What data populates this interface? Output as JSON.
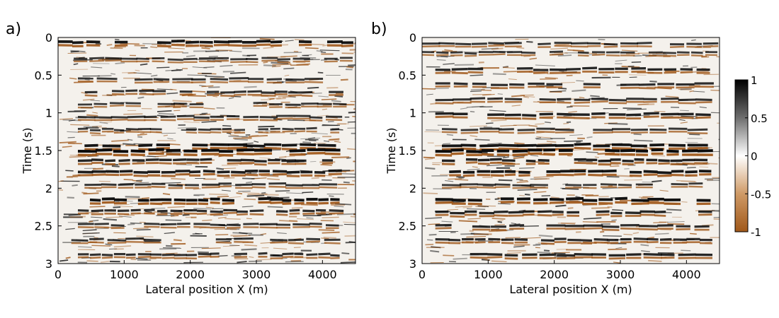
{
  "chart_data": [
    {
      "panel_label": "a)",
      "type": "heatmap",
      "title": "",
      "xlabel": "Lateral position X (m)",
      "ylabel": "Time (s)",
      "xlim": [
        0,
        4500
      ],
      "ylim": [
        0,
        3
      ],
      "y_inverted": true,
      "x_ticks": [
        0,
        1000,
        2000,
        3000,
        4000
      ],
      "x_tick_labels": [
        "0",
        "1000",
        "2000",
        "3000",
        "4000"
      ],
      "y_ticks": [
        0,
        0.5,
        1,
        1.5,
        2,
        2.5,
        3
      ],
      "y_tick_labels": [
        "0",
        "0.5",
        "1",
        "1.5",
        "2",
        "2.5",
        "3"
      ],
      "colormap": "brown-white-black",
      "color_range": [
        -1,
        1
      ],
      "reflectors": [
        {
          "t": 0.06,
          "x_from": 0,
          "x_to": 4500,
          "strength": 0.9
        },
        {
          "t": 0.28,
          "x_from": 0,
          "x_to": 4500,
          "strength": 0.55
        },
        {
          "t": 0.55,
          "x_from": 300,
          "x_to": 4300,
          "strength": 0.6
        },
        {
          "t": 0.72,
          "x_from": 200,
          "x_to": 4300,
          "strength": 0.65
        },
        {
          "t": 0.88,
          "x_from": 300,
          "x_to": 4400,
          "strength": 0.55
        },
        {
          "t": 1.05,
          "x_from": 300,
          "x_to": 4300,
          "strength": 0.6
        },
        {
          "t": 1.22,
          "x_from": 300,
          "x_to": 4300,
          "strength": 0.55
        },
        {
          "t": 1.43,
          "x_from": 400,
          "x_to": 4200,
          "strength": 0.9
        },
        {
          "t": 1.5,
          "x_from": 300,
          "x_to": 4300,
          "strength": 1.0
        },
        {
          "t": 1.63,
          "x_from": 300,
          "x_to": 4200,
          "strength": 0.75
        },
        {
          "t": 1.78,
          "x_from": 300,
          "x_to": 4300,
          "strength": 0.85
        },
        {
          "t": 1.95,
          "x_from": 400,
          "x_to": 4200,
          "strength": 0.6
        },
        {
          "t": 2.15,
          "x_from": 300,
          "x_to": 4300,
          "strength": 0.95
        },
        {
          "t": 2.3,
          "x_from": 300,
          "x_to": 4300,
          "strength": 0.7
        },
        {
          "t": 2.48,
          "x_from": 300,
          "x_to": 4300,
          "strength": 0.6
        },
        {
          "t": 2.68,
          "x_from": 200,
          "x_to": 4300,
          "strength": 0.6
        },
        {
          "t": 2.88,
          "x_from": 300,
          "x_to": 4300,
          "strength": 0.65
        }
      ],
      "noise_level": 0.75
    },
    {
      "panel_label": "b)",
      "type": "heatmap",
      "title": "",
      "xlabel": "Lateral position X (m)",
      "ylabel": "Time (s)",
      "xlim": [
        0,
        4500
      ],
      "ylim": [
        0,
        3
      ],
      "y_inverted": true,
      "x_ticks": [
        0,
        1000,
        2000,
        3000,
        4000
      ],
      "x_tick_labels": [
        "0",
        "1000",
        "2000",
        "3000",
        "4000"
      ],
      "y_ticks": [
        0,
        0.5,
        1,
        1.5,
        2,
        2.5,
        3
      ],
      "y_tick_labels": [
        "0",
        "0.5",
        "1",
        "1.5",
        "2",
        "2.5",
        "3"
      ],
      "colormap": "brown-white-black",
      "color_range": [
        -1,
        1
      ],
      "reflectors": [
        {
          "t": 0.08,
          "x_from": 0,
          "x_to": 4500,
          "strength": 0.6
        },
        {
          "t": 0.2,
          "x_from": 0,
          "x_to": 4500,
          "strength": 0.55
        },
        {
          "t": 0.42,
          "x_from": 200,
          "x_to": 4400,
          "strength": 0.75
        },
        {
          "t": 0.62,
          "x_from": 200,
          "x_to": 4400,
          "strength": 0.7
        },
        {
          "t": 0.82,
          "x_from": 200,
          "x_to": 4400,
          "strength": 0.65
        },
        {
          "t": 1.02,
          "x_from": 200,
          "x_to": 4400,
          "strength": 0.8
        },
        {
          "t": 1.22,
          "x_from": 300,
          "x_to": 4300,
          "strength": 0.6
        },
        {
          "t": 1.43,
          "x_from": 300,
          "x_to": 4300,
          "strength": 0.9
        },
        {
          "t": 1.5,
          "x_from": 200,
          "x_to": 4400,
          "strength": 1.0
        },
        {
          "t": 1.63,
          "x_from": 300,
          "x_to": 4300,
          "strength": 0.8
        },
        {
          "t": 1.78,
          "x_from": 200,
          "x_to": 4400,
          "strength": 0.9
        },
        {
          "t": 1.95,
          "x_from": 300,
          "x_to": 4300,
          "strength": 0.55
        },
        {
          "t": 2.15,
          "x_from": 200,
          "x_to": 4400,
          "strength": 0.95
        },
        {
          "t": 2.32,
          "x_from": 200,
          "x_to": 4400,
          "strength": 0.75
        },
        {
          "t": 2.5,
          "x_from": 200,
          "x_to": 4400,
          "strength": 0.7
        },
        {
          "t": 2.68,
          "x_from": 200,
          "x_to": 4400,
          "strength": 0.7
        },
        {
          "t": 2.88,
          "x_from": 200,
          "x_to": 4400,
          "strength": 0.75
        }
      ],
      "noise_level": 0.55
    }
  ],
  "colorbar": {
    "ticks": [
      1,
      0.5,
      0,
      -0.5,
      -1
    ],
    "tick_labels": [
      "1",
      "0.5",
      "0",
      "-0.5",
      "-1"
    ],
    "colors": {
      "max": "#000000",
      "mid": "#ffffff",
      "min": "#a0581a"
    }
  }
}
